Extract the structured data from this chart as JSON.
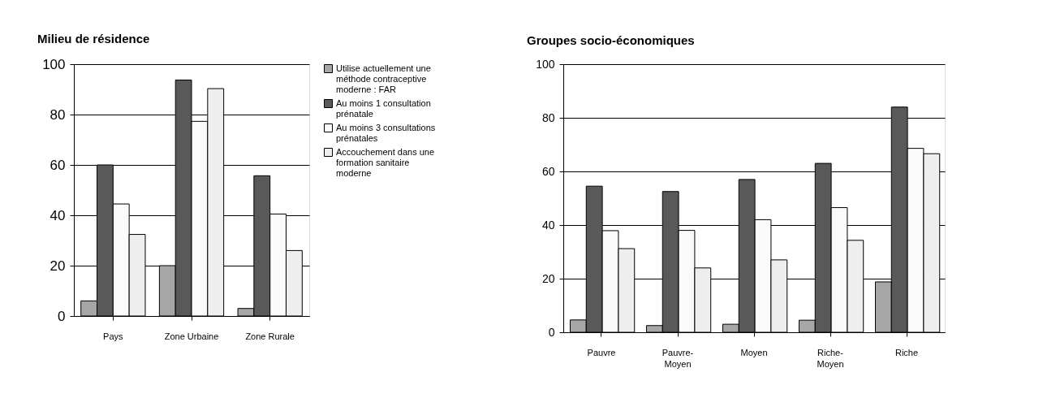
{
  "chart_data": [
    {
      "type": "bar",
      "title": "Milieu de résidence",
      "categories": [
        "Pays",
        "Zone Urbaine",
        "Zone Rurale"
      ],
      "ylim": [
        0,
        100
      ],
      "yticks": [
        0,
        20,
        40,
        60,
        80,
        100
      ],
      "grid": "y",
      "legend": "right",
      "series": [
        {
          "name": "Utilise actuellement une méthode contraceptive moderne : FAR",
          "color": "#a6a6a6",
          "values": [
            6,
            20,
            3
          ]
        },
        {
          "name": "Au moins 1 consultation prénatale",
          "color": "#595959",
          "values": [
            60,
            93.7,
            55.7
          ]
        },
        {
          "name": "Au moins 3 consultations prénatales",
          "color": "#fafafa",
          "values": [
            44.5,
            77.3,
            40.5
          ]
        },
        {
          "name": "Accouchement dans une formation sanitaire moderne",
          "color": "#eeeeee",
          "values": [
            32.4,
            90.3,
            26
          ]
        }
      ]
    },
    {
      "type": "bar",
      "title": "Groupes socio-économiques",
      "categories": [
        "Pauvre",
        "Pauvre-Moyen",
        "Moyen",
        "Riche-Moyen",
        "Riche"
      ],
      "ylim": [
        0,
        100
      ],
      "yticks": [
        0,
        20,
        40,
        60,
        80,
        100
      ],
      "grid": "y",
      "legend": false,
      "series": [
        {
          "color": "#a6a6a6",
          "values": [
            4.6,
            2.5,
            3,
            4.5,
            18.8
          ]
        },
        {
          "color": "#595959",
          "values": [
            54.5,
            52.5,
            57,
            63,
            84
          ]
        },
        {
          "color": "#fafafa",
          "values": [
            37.9,
            38,
            42,
            46.5,
            68.6
          ]
        },
        {
          "color": "#eeeeee",
          "values": [
            31.2,
            24,
            27,
            34.3,
            66.6
          ]
        }
      ]
    }
  ]
}
